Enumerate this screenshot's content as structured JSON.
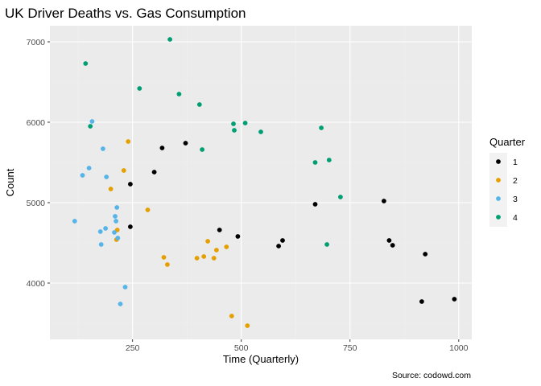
{
  "chart_data": {
    "type": "scatter",
    "title": "UK Driver Deaths vs. Gas Consumption",
    "xlabel": "Time (Quarterly)",
    "ylabel": "Count",
    "xlim": [
      60,
      1030
    ],
    "ylim": [
      3300,
      7200
    ],
    "x_ticks": [
      250,
      500,
      750,
      1000
    ],
    "y_ticks": [
      4000,
      5000,
      6000,
      7000
    ],
    "grid": true,
    "legend": {
      "title": "Quarter",
      "position": "right"
    },
    "caption": "Source: codowd.com",
    "series": [
      {
        "name": "1",
        "color": "#000000",
        "points": [
          [
            245,
            5230
          ],
          [
            245,
            4700
          ],
          [
            300,
            5380
          ],
          [
            318,
            5680
          ],
          [
            372,
            5740
          ],
          [
            450,
            4660
          ],
          [
            492,
            4580
          ],
          [
            586,
            4460
          ],
          [
            595,
            4530
          ],
          [
            670,
            4980
          ],
          [
            828,
            5020
          ],
          [
            840,
            4530
          ],
          [
            848,
            4470
          ],
          [
            915,
            3770
          ],
          [
            923,
            4360
          ],
          [
            990,
            3800
          ]
        ]
      },
      {
        "name": "2",
        "color": "#E69F00",
        "points": [
          [
            200,
            5170
          ],
          [
            213,
            4540
          ],
          [
            215,
            4660
          ],
          [
            230,
            5400
          ],
          [
            240,
            5760
          ],
          [
            285,
            4910
          ],
          [
            322,
            4320
          ],
          [
            330,
            4230
          ],
          [
            398,
            4310
          ],
          [
            414,
            4330
          ],
          [
            423,
            4520
          ],
          [
            437,
            4310
          ],
          [
            443,
            4410
          ],
          [
            466,
            4450
          ],
          [
            478,
            3590
          ],
          [
            514,
            3470
          ]
        ]
      },
      {
        "name": "3",
        "color": "#56B4E9",
        "points": [
          [
            117,
            4770
          ],
          [
            135,
            5340
          ],
          [
            150,
            5430
          ],
          [
            157,
            6010
          ],
          [
            176,
            4640
          ],
          [
            178,
            4480
          ],
          [
            182,
            5670
          ],
          [
            188,
            4680
          ],
          [
            190,
            5320
          ],
          [
            208,
            4630
          ],
          [
            210,
            4830
          ],
          [
            212,
            4770
          ],
          [
            214,
            4940
          ],
          [
            216,
            4560
          ],
          [
            222,
            3740
          ],
          [
            233,
            3950
          ]
        ]
      },
      {
        "name": "4",
        "color": "#009E73",
        "points": [
          [
            142,
            6730
          ],
          [
            153,
            5950
          ],
          [
            266,
            6420
          ],
          [
            336,
            7030
          ],
          [
            357,
            6350
          ],
          [
            404,
            6220
          ],
          [
            410,
            5660
          ],
          [
            482,
            5980
          ],
          [
            484,
            5900
          ],
          [
            509,
            5990
          ],
          [
            545,
            5880
          ],
          [
            670,
            5500
          ],
          [
            684,
            5930
          ],
          [
            697,
            4480
          ],
          [
            702,
            5530
          ],
          [
            728,
            5070
          ]
        ]
      }
    ]
  }
}
